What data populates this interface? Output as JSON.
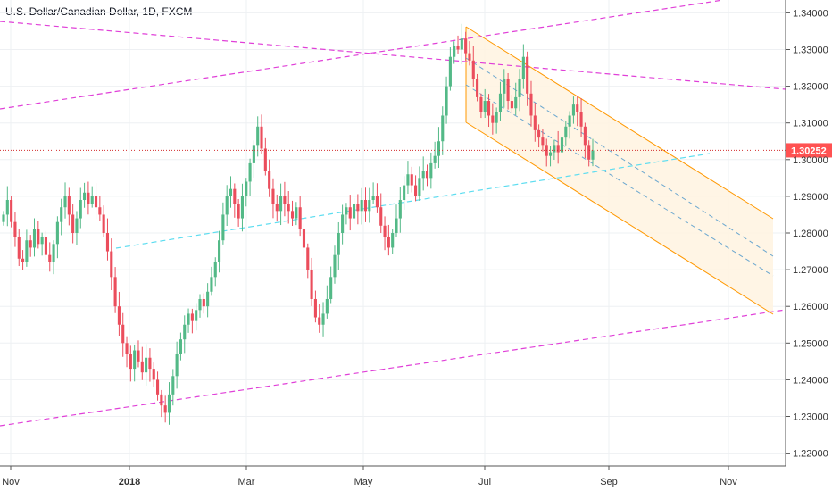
{
  "chart_title": "U.S. Dollar/Canadian Dollar, 1D, FXCM",
  "colors": {
    "up": "#53b987",
    "down": "#eb4d5c",
    "trendline": "#e040d8",
    "median_line": "#5eddf0",
    "channel": "#ff9800",
    "channel_fill": "#fff3e0",
    "channel_mid": "#6ba7cf",
    "price_line": "#d32f2f",
    "price_label_bg": "#ff5252"
  },
  "chart_data": {
    "type": "candlestick",
    "title": "U.S. Dollar/Canadian Dollar, 1D, FXCM",
    "x_axis_labels": [
      {
        "label": "Nov",
        "bold": false
      },
      {
        "label": "2018",
        "bold": true
      },
      {
        "label": "Mar",
        "bold": false
      },
      {
        "label": "May",
        "bold": false
      },
      {
        "label": "Jul",
        "bold": false
      },
      {
        "label": "Sep",
        "bold": false
      },
      {
        "label": "Nov",
        "bold": false
      }
    ],
    "y_axis": {
      "ticks": [
        "1.22000",
        "1.23000",
        "1.24000",
        "1.25000",
        "1.26000",
        "1.27000",
        "1.28000",
        "1.29000",
        "1.30000",
        "1.31000",
        "1.32000",
        "1.33000",
        "1.34000"
      ],
      "ylim": [
        1.2165,
        1.3435
      ]
    },
    "last_price": 1.30252,
    "last_price_label": "1.30252",
    "closes": [
      1.285,
      1.289,
      1.283,
      1.279,
      1.273,
      1.272,
      1.278,
      1.276,
      1.281,
      1.277,
      1.279,
      1.274,
      1.272,
      1.277,
      1.283,
      1.287,
      1.29,
      1.285,
      1.28,
      1.284,
      1.289,
      1.291,
      1.288,
      1.29,
      1.287,
      1.285,
      1.28,
      1.275,
      1.268,
      1.26,
      1.255,
      1.25,
      1.247,
      1.243,
      1.248,
      1.245,
      1.242,
      1.246,
      1.243,
      1.24,
      1.236,
      1.233,
      1.231,
      1.236,
      1.241,
      1.247,
      1.251,
      1.255,
      1.258,
      1.256,
      1.259,
      1.262,
      1.26,
      1.264,
      1.268,
      1.272,
      1.278,
      1.285,
      1.29,
      1.292,
      1.288,
      1.284,
      1.29,
      1.294,
      1.299,
      1.304,
      1.309,
      1.303,
      1.297,
      1.292,
      1.288,
      1.286,
      1.29,
      1.288,
      1.286,
      1.284,
      1.287,
      1.281,
      1.276,
      1.27,
      1.262,
      1.257,
      1.255,
      1.258,
      1.262,
      1.268,
      1.274,
      1.28,
      1.285,
      1.287,
      1.284,
      1.288,
      1.286,
      1.289,
      1.286,
      1.289,
      1.29,
      1.287,
      1.282,
      1.279,
      1.276,
      1.28,
      1.284,
      1.289,
      1.293,
      1.296,
      1.293,
      1.29,
      1.295,
      1.297,
      1.295,
      1.299,
      1.301,
      1.305,
      1.312,
      1.32,
      1.328,
      1.331,
      1.33,
      1.333,
      1.329,
      1.327,
      1.322,
      1.317,
      1.313,
      1.316,
      1.312,
      1.31,
      1.313,
      1.318,
      1.322,
      1.316,
      1.314,
      1.317,
      1.322,
      1.328,
      1.318,
      1.312,
      1.308,
      1.306,
      1.304,
      1.301,
      1.302,
      1.304,
      1.302,
      1.306,
      1.309,
      1.312,
      1.315,
      1.313,
      1.309,
      1.304,
      1.3,
      1.30252
    ]
  }
}
